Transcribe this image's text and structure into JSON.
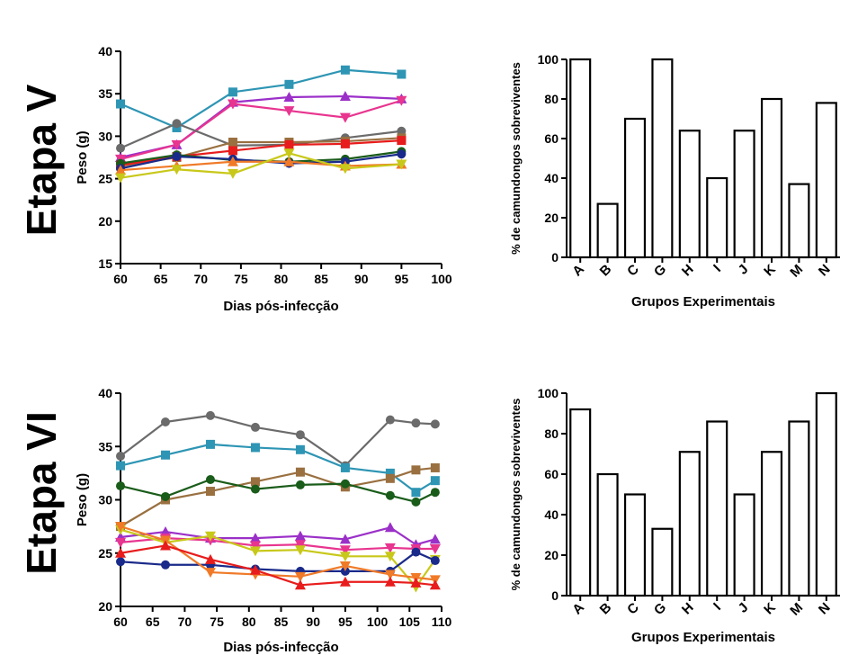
{
  "labels": {
    "etapa_v": "Etapa V",
    "etapa_vi": "Etapa VI"
  },
  "chart_data": [
    {
      "id": "line5",
      "type": "line",
      "title": "",
      "xlabel": "Dias pós-infecção",
      "ylabel": "Peso (g)",
      "xlim": [
        60,
        100
      ],
      "ylim": [
        15,
        40
      ],
      "xticks": [
        60,
        65,
        70,
        75,
        80,
        85,
        90,
        95,
        100
      ],
      "yticks": [
        15,
        20,
        25,
        30,
        35,
        40
      ],
      "grid": false,
      "series": [
        {
          "color": "#2e95b4",
          "marker": "square",
          "x": [
            60,
            67,
            74,
            81,
            88,
            95
          ],
          "y": [
            33.8,
            31.0,
            35.2,
            36.1,
            37.8,
            37.3
          ]
        },
        {
          "color": "#9b30c8",
          "marker": "triangle-up",
          "x": [
            60,
            67,
            74,
            81,
            88,
            95
          ],
          "y": [
            27.5,
            29.0,
            34.0,
            34.6,
            34.7,
            34.4
          ]
        },
        {
          "color": "#e8358f",
          "marker": "triangle-down",
          "x": [
            60,
            67,
            74,
            81,
            88,
            95
          ],
          "y": [
            27.3,
            29.0,
            33.8,
            33.0,
            32.2,
            34.2
          ]
        },
        {
          "color": "#6b6b6b",
          "marker": "circle",
          "x": [
            60,
            67,
            74,
            81,
            88,
            95
          ],
          "y": [
            28.6,
            31.5,
            28.9,
            29.0,
            29.8,
            30.6
          ]
        },
        {
          "color": "#9a7040",
          "marker": "square",
          "x": [
            60,
            67,
            74,
            81,
            88,
            95
          ],
          "y": [
            26.5,
            27.5,
            29.3,
            29.3,
            29.4,
            29.8
          ]
        },
        {
          "color": "#e81c1c",
          "marker": "square",
          "x": [
            60,
            67,
            74,
            81,
            88,
            95
          ],
          "y": [
            26.6,
            27.6,
            28.3,
            29.0,
            29.1,
            29.5
          ]
        },
        {
          "color": "#1a5c1a",
          "marker": "circle",
          "x": [
            60,
            67,
            74,
            81,
            88,
            95
          ],
          "y": [
            26.8,
            27.8,
            27.2,
            27.0,
            27.3,
            28.2
          ]
        },
        {
          "color": "#1a2a8a",
          "marker": "circle",
          "x": [
            60,
            67,
            74,
            81,
            88,
            95
          ],
          "y": [
            26.2,
            27.6,
            27.3,
            26.8,
            27.0,
            27.9
          ]
        },
        {
          "color": "#f07a28",
          "marker": "triangle-up",
          "x": [
            60,
            67,
            74,
            81,
            88,
            95
          ],
          "y": [
            26.0,
            26.5,
            27.0,
            27.0,
            26.5,
            26.7
          ]
        },
        {
          "color": "#c8c81a",
          "marker": "triangle-down",
          "x": [
            60,
            67,
            74,
            81,
            88,
            95
          ],
          "y": [
            25.1,
            26.1,
            25.6,
            28.0,
            26.2,
            26.7
          ]
        }
      ]
    },
    {
      "id": "bar5",
      "type": "bar",
      "title": "",
      "xlabel": "Grupos Experimentais",
      "ylabel": "% de camundongos sobreviventes",
      "categories": [
        "A",
        "B",
        "C",
        "G",
        "H",
        "I",
        "J",
        "K",
        "M",
        "N"
      ],
      "values": [
        100,
        27,
        70,
        100,
        64,
        40,
        64,
        80,
        37,
        78
      ],
      "ylim": [
        0,
        100
      ],
      "yticks": [
        0,
        20,
        40,
        60,
        80,
        100
      ],
      "grid": false
    },
    {
      "id": "line6",
      "type": "line",
      "title": "",
      "xlabel": "Dias pós-infecção",
      "ylabel": "Peso (g)",
      "xlim": [
        60,
        110
      ],
      "ylim": [
        20,
        40
      ],
      "xticks": [
        60,
        65,
        70,
        75,
        80,
        85,
        90,
        95,
        100,
        105,
        110
      ],
      "yticks": [
        20,
        25,
        30,
        35,
        40
      ],
      "grid": false,
      "series": [
        {
          "color": "#6b6b6b",
          "marker": "circle",
          "x": [
            60,
            67,
            74,
            81,
            88,
            95,
            102,
            106,
            109
          ],
          "y": [
            34.1,
            37.3,
            37.9,
            36.8,
            36.1,
            33.2,
            37.5,
            37.2,
            37.1
          ]
        },
        {
          "color": "#2e95b4",
          "marker": "square",
          "x": [
            60,
            67,
            74,
            81,
            88,
            95,
            102,
            106,
            109
          ],
          "y": [
            33.2,
            34.2,
            35.2,
            34.9,
            34.7,
            33.0,
            32.5,
            30.7,
            31.8
          ]
        },
        {
          "color": "#9a7040",
          "marker": "square",
          "x": [
            60,
            67,
            74,
            81,
            88,
            95,
            102,
            106,
            109
          ],
          "y": [
            27.5,
            30.0,
            30.8,
            31.7,
            32.6,
            31.2,
            32.0,
            32.8,
            33.0
          ]
        },
        {
          "color": "#1a5c1a",
          "marker": "circle",
          "x": [
            60,
            67,
            74,
            81,
            88,
            95,
            102,
            106,
            109
          ],
          "y": [
            31.3,
            30.3,
            31.9,
            31.0,
            31.4,
            31.5,
            30.4,
            29.8,
            30.7
          ]
        },
        {
          "color": "#9b30c8",
          "marker": "triangle-up",
          "x": [
            60,
            67,
            74,
            81,
            88,
            95,
            102,
            106,
            109
          ],
          "y": [
            26.5,
            27.0,
            26.4,
            26.4,
            26.6,
            26.3,
            27.4,
            25.8,
            26.3
          ]
        },
        {
          "color": "#e8358f",
          "marker": "triangle-down",
          "x": [
            60,
            67,
            74,
            81,
            88,
            95,
            102,
            106,
            109
          ],
          "y": [
            26.0,
            26.4,
            26.2,
            25.7,
            25.8,
            25.3,
            25.5,
            25.4,
            25.4
          ]
        },
        {
          "color": "#c8c81a",
          "marker": "triangle-down",
          "x": [
            60,
            67,
            74,
            81,
            88,
            95,
            102,
            106,
            109
          ],
          "y": [
            27.2,
            26.0,
            26.6,
            25.2,
            25.3,
            24.7,
            24.7,
            21.8,
            24.4
          ]
        },
        {
          "color": "#1a2a8a",
          "marker": "circle",
          "x": [
            60,
            67,
            74,
            81,
            88,
            95,
            102,
            106,
            109
          ],
          "y": [
            24.2,
            23.9,
            23.9,
            23.5,
            23.3,
            23.3,
            23.3,
            25.1,
            24.3
          ]
        },
        {
          "color": "#f07a28",
          "marker": "triangle-down",
          "x": [
            60,
            67,
            74,
            81,
            88,
            95,
            102,
            106,
            109
          ],
          "y": [
            27.5,
            26.2,
            23.2,
            23.0,
            22.8,
            23.8,
            23.0,
            22.7,
            22.5
          ]
        },
        {
          "color": "#e81c1c",
          "marker": "triangle-up",
          "x": [
            60,
            67,
            74,
            81,
            88,
            95,
            102,
            106,
            109
          ],
          "y": [
            25.0,
            25.7,
            24.4,
            23.4,
            22.0,
            22.3,
            22.3,
            22.2,
            22.0
          ]
        }
      ]
    },
    {
      "id": "bar6",
      "type": "bar",
      "title": "",
      "xlabel": "Grupos Experimentais",
      "ylabel": "% de camundongos sobreviventes",
      "categories": [
        "A",
        "B",
        "C",
        "G",
        "H",
        "I",
        "J",
        "K",
        "M",
        "N"
      ],
      "values": [
        92,
        60,
        50,
        33,
        71,
        86,
        50,
        71,
        86,
        100
      ],
      "ylim": [
        0,
        100
      ],
      "yticks": [
        0,
        20,
        40,
        60,
        80,
        100
      ],
      "grid": false
    }
  ]
}
